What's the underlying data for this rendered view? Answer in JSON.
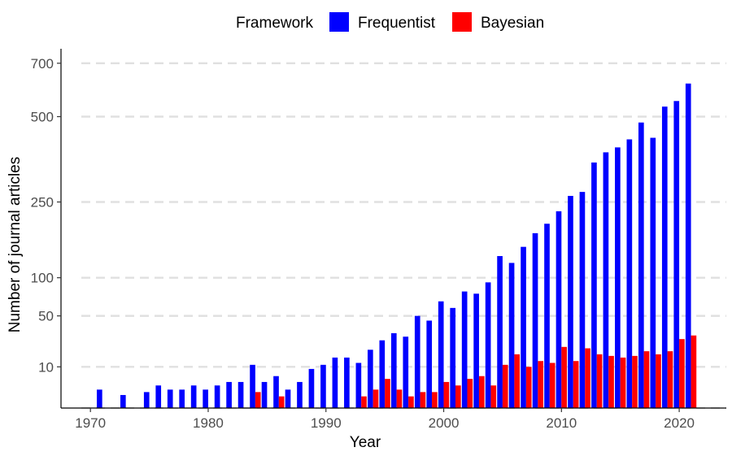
{
  "chart_data": {
    "type": "bar",
    "xlabel": "Year",
    "ylabel": "Number of journal articles",
    "xlim": [
      1967.5,
      2024
    ],
    "x_ticks": [
      1970,
      1980,
      1990,
      2000,
      2010,
      2020
    ],
    "y_scale": "sqrt",
    "ylim": [
      0,
      760
    ],
    "y_ticks": [
      10,
      50,
      100,
      250,
      500,
      700
    ],
    "grid": "horizontal dashed",
    "legend": {
      "title": "Framework",
      "position": "top",
      "entries": [
        {
          "name": "Frequentist",
          "color": "#0000FF"
        },
        {
          "name": "Bayesian",
          "color": "#FF0000"
        }
      ]
    },
    "series": [
      {
        "name": "Frequentist",
        "color": "#0000FF",
        "x": [
          1971,
          1973,
          1975,
          1976,
          1977,
          1978,
          1979,
          1980,
          1981,
          1982,
          1983,
          1984,
          1985,
          1986,
          1987,
          1988,
          1989,
          1990,
          1991,
          1992,
          1993,
          1994,
          1995,
          1996,
          1997,
          1998,
          1999,
          2000,
          2001,
          2002,
          2003,
          2004,
          2005,
          2006,
          2007,
          2008,
          2009,
          2010,
          2011,
          2012,
          2013,
          2014,
          2015,
          2016,
          2017,
          2018,
          2019,
          2020,
          2021
        ],
        "values": [
          2,
          1,
          1.5,
          3,
          2,
          2,
          3,
          2,
          3,
          4,
          4,
          11,
          4,
          6,
          2,
          4,
          9,
          11,
          15,
          15,
          12,
          20,
          27,
          33,
          30,
          50,
          45,
          67,
          59,
          80,
          77,
          93,
          136,
          124,
          153,
          180,
          200,
          228,
          265,
          275,
          355,
          385,
          400,
          425,
          480,
          430,
          535,
          555,
          620
        ]
      },
      {
        "name": "Bayesian",
        "color": "#FF0000",
        "x": [
          1984,
          1986,
          1993,
          1994,
          1995,
          1996,
          1997,
          1998,
          1999,
          2000,
          2001,
          2002,
          2003,
          2004,
          2005,
          2006,
          2007,
          2008,
          2009,
          2010,
          2011,
          2012,
          2013,
          2014,
          2015,
          2016,
          2017,
          2018,
          2019,
          2020,
          2021
        ],
        "values": [
          1.5,
          0.8,
          0.8,
          2,
          5,
          2,
          0.8,
          1.5,
          1.5,
          4,
          3,
          5,
          6,
          3,
          11,
          17,
          10,
          13,
          12,
          22,
          13,
          21,
          17,
          16,
          15,
          16,
          19,
          17,
          19,
          28,
          31
        ]
      }
    ]
  }
}
